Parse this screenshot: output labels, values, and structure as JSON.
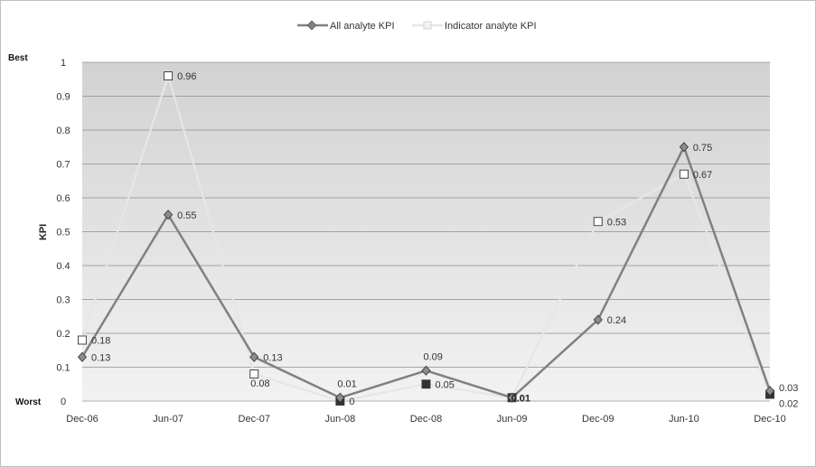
{
  "chart_data": {
    "type": "line",
    "title": "",
    "xlabel": "",
    "ylabel": "KPI",
    "ylim": [
      0,
      1
    ],
    "yticks": [
      "0",
      "0.1",
      "0.2",
      "0.3",
      "0.4",
      "0.5",
      "0.6",
      "0.7",
      "0.8",
      "0.9",
      "1"
    ],
    "top_label": "Best",
    "bottom_label": "Worst",
    "grid": true,
    "legend_position": "top",
    "categories": [
      "Dec-06",
      "Jun-07",
      "Dec-07",
      "Jun-08",
      "Dec-08",
      "Jun-09",
      "Dec-09",
      "Jun-10",
      "Dec-10"
    ],
    "series": [
      {
        "name": "All analyte KPI",
        "color": "#808080",
        "marker": "diamond",
        "values": [
          0.13,
          0.55,
          0.13,
          0.01,
          0.09,
          0.01,
          0.24,
          0.75,
          0.03
        ],
        "labels": [
          "0.13",
          "0.55",
          "0.13",
          "0.01",
          "0.09",
          "0.01",
          "0.24",
          "0.75",
          "0.03"
        ]
      },
      {
        "name": "Indicator analyte KPI",
        "color": "#e6e6e6",
        "marker": "square",
        "values": [
          0.18,
          0.96,
          0.08,
          0,
          0.05,
          0.01,
          0.53,
          0.67,
          0.02
        ],
        "labels": [
          "0.18",
          "0.96",
          "0.08",
          "0",
          "0.05",
          "0.01",
          "0.53",
          "0.67",
          "0.02"
        ]
      }
    ]
  }
}
